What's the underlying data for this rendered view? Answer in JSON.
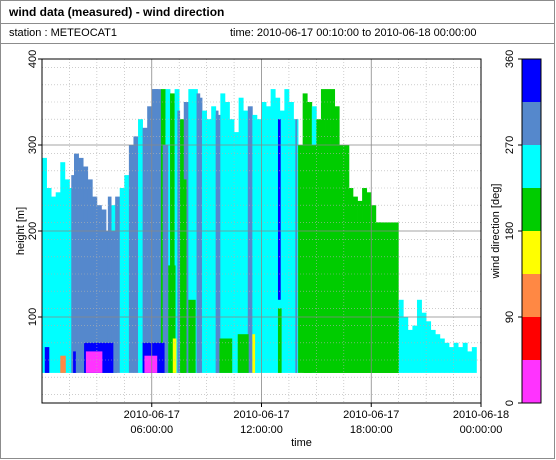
{
  "header": {
    "title": "wind data (measured) - wind direction",
    "station": "station : METEOCAT1",
    "time_range": "time: 2010-06-17 00:10:00 to 2010-06-18 00:00:00"
  },
  "chart_data": {
    "type": "heatmap",
    "xlabel": "time",
    "ylabel": "height [m]",
    "x_ticks": [
      {
        "hour": 6,
        "line1": "2010-06-17",
        "line2": "06:00:00"
      },
      {
        "hour": 12,
        "line1": "2010-06-17",
        "line2": "12:00:00"
      },
      {
        "hour": 18,
        "line1": "2010-06-17",
        "line2": "18:00:00"
      },
      {
        "hour": 24,
        "line1": "2010-06-18",
        "line2": "00:00:00"
      }
    ],
    "xlim_hours": [
      0,
      24
    ],
    "ylim": [
      0,
      400
    ],
    "y_ticks": [
      100,
      200,
      300,
      400
    ],
    "grid": true,
    "colorbar": {
      "label": "wind direction [deg]",
      "range": [
        0,
        360
      ],
      "ticks": [
        0,
        90,
        180,
        270,
        360
      ],
      "colors": [
        "#ff33ff",
        "#ff0000",
        "#ff8844",
        "#ffff00",
        "#00cc00",
        "#00ffff",
        "#5588cc",
        "#0000ff"
      ]
    },
    "column_width_hours": 0.1667,
    "height_bin_m": 10,
    "bottom_height_m": 35,
    "columns": [
      {
        "h": 0.25,
        "top": 285,
        "c": "#00ffff"
      },
      {
        "h": 0.5,
        "top": 250,
        "c": "#00ffff"
      },
      {
        "h": 0.75,
        "top": 240,
        "c": "#00ffff"
      },
      {
        "h": 1.0,
        "top": 245,
        "c": "#00ffff"
      },
      {
        "h": 1.25,
        "top": 280,
        "c": "#00ffff"
      },
      {
        "h": 1.5,
        "top": 260,
        "c": "#00ffff"
      },
      {
        "h": 1.75,
        "top": 250,
        "c": "#00ffff"
      },
      {
        "h": 2.0,
        "top": 290,
        "c": "#5588cc"
      },
      {
        "h": 2.25,
        "top": 285,
        "c": "#5588cc"
      },
      {
        "h": 2.5,
        "top": 275,
        "c": "#5588cc"
      },
      {
        "h": 2.75,
        "top": 260,
        "c": "#5588cc"
      },
      {
        "h": 3.0,
        "top": 240,
        "c": "#5588cc"
      },
      {
        "h": 3.25,
        "top": 230,
        "c": "#5588cc"
      },
      {
        "h": 3.5,
        "top": 225,
        "c": "#5588cc"
      },
      {
        "h": 3.75,
        "top": 200,
        "c": "#5588cc"
      },
      {
        "h": 4.0,
        "top": 230,
        "c": "#00ffff"
      },
      {
        "h": 4.25,
        "top": 240,
        "c": "#5588cc"
      },
      {
        "h": 4.5,
        "top": 250,
        "c": "#00ffff"
      },
      {
        "h": 4.75,
        "top": 265,
        "c": "#00ffff"
      },
      {
        "h": 5.0,
        "top": 300,
        "c": "#5588cc"
      },
      {
        "h": 5.25,
        "top": 310,
        "c": "#5588cc"
      },
      {
        "h": 5.5,
        "top": 330,
        "c": "#00ffff"
      },
      {
        "h": 5.75,
        "top": 320,
        "c": "#5588cc"
      },
      {
        "h": 6.0,
        "top": 345,
        "c": "#5588cc"
      },
      {
        "h": 6.25,
        "top": 365,
        "c": "#5588cc"
      },
      {
        "h": 6.5,
        "top": 365,
        "c": "#5588cc"
      },
      {
        "h": 6.75,
        "top": 365,
        "c": "#00cc00"
      },
      {
        "h": 7.0,
        "top": 365,
        "c": "#00ffff"
      },
      {
        "h": 7.25,
        "top": 360,
        "c": "#00cc00"
      },
      {
        "h": 7.5,
        "top": 365,
        "c": "#00ffff"
      },
      {
        "h": 7.75,
        "top": 330,
        "c": "#00cc00"
      },
      {
        "h": 8.0,
        "top": 350,
        "c": "#5588cc"
      },
      {
        "h": 8.25,
        "top": 365,
        "c": "#00ffff"
      },
      {
        "h": 8.5,
        "top": 365,
        "c": "#00ffff"
      },
      {
        "h": 8.75,
        "top": 355,
        "c": "#5588cc"
      },
      {
        "h": 9.0,
        "top": 340,
        "c": "#00ffff"
      },
      {
        "h": 9.25,
        "top": 330,
        "c": "#00ffff"
      },
      {
        "h": 9.5,
        "top": 345,
        "c": "#00ffff"
      },
      {
        "h": 9.75,
        "top": 335,
        "c": "#5588cc"
      },
      {
        "h": 10.0,
        "top": 360,
        "c": "#00ffff"
      },
      {
        "h": 10.25,
        "top": 350,
        "c": "#00ffff"
      },
      {
        "h": 10.5,
        "top": 330,
        "c": "#00ffff"
      },
      {
        "h": 10.75,
        "top": 315,
        "c": "#00ffff"
      },
      {
        "h": 11.0,
        "top": 355,
        "c": "#00ffff"
      },
      {
        "h": 11.25,
        "top": 340,
        "c": "#00ffff"
      },
      {
        "h": 11.5,
        "top": 345,
        "c": "#5588cc"
      },
      {
        "h": 11.75,
        "top": 335,
        "c": "#00ffff"
      },
      {
        "h": 12.0,
        "top": 330,
        "c": "#00ffff"
      },
      {
        "h": 12.25,
        "top": 350,
        "c": "#00ffff"
      },
      {
        "h": 12.5,
        "top": 345,
        "c": "#00ffff"
      },
      {
        "h": 12.75,
        "top": 365,
        "c": "#00ffff"
      },
      {
        "h": 13.0,
        "top": 355,
        "c": "#00ffff"
      },
      {
        "h": 13.25,
        "top": 340,
        "c": "#00ffff"
      },
      {
        "h": 13.5,
        "top": 365,
        "c": "#00ffff"
      },
      {
        "h": 13.75,
        "top": 350,
        "c": "#00ffff"
      },
      {
        "h": 14.0,
        "top": 330,
        "c": "#00ffff"
      },
      {
        "h": 14.25,
        "top": 300,
        "c": "#00cc00"
      },
      {
        "h": 14.5,
        "top": 360,
        "c": "#00cc00"
      },
      {
        "h": 14.75,
        "top": 350,
        "c": "#00cc00"
      },
      {
        "h": 15.0,
        "top": 345,
        "c": "#00ffff"
      },
      {
        "h": 15.25,
        "top": 330,
        "c": "#00cc00"
      },
      {
        "h": 15.5,
        "top": 365,
        "c": "#00cc00"
      },
      {
        "h": 15.75,
        "top": 365,
        "c": "#00cc00"
      },
      {
        "h": 16.0,
        "top": 365,
        "c": "#00cc00"
      },
      {
        "h": 16.25,
        "top": 345,
        "c": "#00cc00"
      },
      {
        "h": 16.5,
        "top": 300,
        "c": "#00cc00"
      },
      {
        "h": 16.75,
        "top": 275,
        "c": "#00cc00"
      },
      {
        "h": 17.0,
        "top": 250,
        "c": "#00cc00"
      },
      {
        "h": 17.25,
        "top": 240,
        "c": "#00cc00"
      },
      {
        "h": 17.5,
        "top": 235,
        "c": "#00cc00"
      },
      {
        "h": 17.75,
        "top": 250,
        "c": "#00cc00"
      },
      {
        "h": 18.0,
        "top": 245,
        "c": "#00cc00"
      },
      {
        "h": 18.25,
        "top": 230,
        "c": "#00cc00"
      },
      {
        "h": 18.5,
        "top": 210,
        "c": "#00cc00"
      },
      {
        "h": 18.75,
        "top": 190,
        "c": "#00cc00"
      },
      {
        "h": 19.0,
        "top": 170,
        "c": "#00cc00"
      },
      {
        "h": 19.25,
        "top": 140,
        "c": "#00cc00"
      },
      {
        "h": 19.5,
        "top": 110,
        "c": "#00cc00"
      },
      {
        "h": 19.75,
        "top": 120,
        "c": "#00ffff"
      },
      {
        "h": 20.0,
        "top": 100,
        "c": "#00ffff"
      },
      {
        "h": 20.25,
        "top": 85,
        "c": "#00ffff"
      },
      {
        "h": 20.5,
        "top": 90,
        "c": "#00ffff"
      },
      {
        "h": 20.75,
        "top": 120,
        "c": "#00ffff"
      },
      {
        "h": 21.0,
        "top": 105,
        "c": "#00ffff"
      },
      {
        "h": 21.25,
        "top": 95,
        "c": "#00ffff"
      },
      {
        "h": 21.5,
        "top": 85,
        "c": "#00ffff"
      },
      {
        "h": 21.75,
        "top": 80,
        "c": "#00ffff"
      },
      {
        "h": 22.0,
        "top": 75,
        "c": "#00ffff"
      },
      {
        "h": 22.25,
        "top": 70,
        "c": "#00ffff"
      },
      {
        "h": 22.5,
        "top": 65,
        "c": "#00ffff"
      },
      {
        "h": 22.75,
        "top": 70,
        "c": "#00ffff"
      },
      {
        "h": 23.0,
        "top": 65,
        "c": "#00ffff"
      },
      {
        "h": 23.25,
        "top": 70,
        "c": "#00ffff"
      },
      {
        "h": 23.5,
        "top": 60,
        "c": "#00ffff"
      },
      {
        "h": 23.75,
        "top": 65,
        "c": "#00ffff"
      }
    ],
    "patches": [
      {
        "h0": 1.6,
        "h1": 1.9,
        "y0": 35,
        "y1": 265,
        "c": "#5588cc"
      },
      {
        "h0": 2.2,
        "h1": 4.1,
        "y0": 35,
        "y1": 200,
        "c": "#5588cc"
      },
      {
        "h0": 3.6,
        "h1": 3.8,
        "y0": 35,
        "y1": 240,
        "c": "#5588cc"
      },
      {
        "h0": 6.1,
        "h1": 6.35,
        "y0": 35,
        "y1": 365,
        "c": "#5588cc"
      },
      {
        "h0": 6.6,
        "h1": 6.9,
        "y0": 35,
        "y1": 300,
        "c": "#5588cc"
      },
      {
        "h0": 7.4,
        "h1": 7.55,
        "y0": 35,
        "y1": 340,
        "c": "#5588cc"
      },
      {
        "h0": 8.45,
        "h1": 8.65,
        "y0": 35,
        "y1": 360,
        "c": "#5588cc"
      },
      {
        "h0": 9.5,
        "h1": 9.65,
        "y0": 35,
        "y1": 340,
        "c": "#5588cc"
      },
      {
        "h0": 13.85,
        "h1": 13.95,
        "y0": 35,
        "y1": 330,
        "c": "#5588cc"
      },
      {
        "h0": 6.9,
        "h1": 7.3,
        "y0": 35,
        "y1": 160,
        "c": "#00cc00"
      },
      {
        "h0": 7.6,
        "h1": 7.9,
        "y0": 35,
        "y1": 260,
        "c": "#00cc00"
      },
      {
        "h0": 8.0,
        "h1": 8.4,
        "y0": 35,
        "y1": 120,
        "c": "#00cc00"
      },
      {
        "h0": 9.7,
        "h1": 10.4,
        "y0": 35,
        "y1": 75,
        "c": "#00cc00"
      },
      {
        "h0": 10.7,
        "h1": 11.3,
        "y0": 35,
        "y1": 80,
        "c": "#00cc00"
      },
      {
        "h0": 12.9,
        "h1": 13.1,
        "y0": 35,
        "y1": 110,
        "c": "#00cc00"
      },
      {
        "h0": 14.3,
        "h1": 16.8,
        "y0": 35,
        "y1": 300,
        "c": "#00cc00"
      },
      {
        "h0": 16.8,
        "h1": 19.5,
        "y0": 35,
        "y1": 210,
        "c": "#00cc00"
      },
      {
        "h0": 0.15,
        "h1": 0.4,
        "y0": 35,
        "y1": 65,
        "c": "#0000ff"
      },
      {
        "h0": 1.7,
        "h1": 1.85,
        "y0": 35,
        "y1": 60,
        "c": "#0000ff"
      },
      {
        "h0": 2.3,
        "h1": 3.9,
        "y0": 35,
        "y1": 70,
        "c": "#0000ff"
      },
      {
        "h0": 5.5,
        "h1": 6.7,
        "y0": 35,
        "y1": 70,
        "c": "#0000ff"
      },
      {
        "h0": 12.9,
        "h1": 13.05,
        "y0": 120,
        "y1": 330,
        "c": "#0000ff"
      },
      {
        "h0": 2.4,
        "h1": 3.3,
        "y0": 35,
        "y1": 60,
        "c": "#ff33ff"
      },
      {
        "h0": 5.6,
        "h1": 6.3,
        "y0": 35,
        "y1": 55,
        "c": "#ff33ff"
      },
      {
        "h0": 7.15,
        "h1": 7.35,
        "y0": 35,
        "y1": 75,
        "c": "#ffff00"
      },
      {
        "h0": 11.5,
        "h1": 11.65,
        "y0": 35,
        "y1": 80,
        "c": "#ffff00"
      },
      {
        "h0": 1.0,
        "h1": 1.3,
        "y0": 35,
        "y1": 55,
        "c": "#ff8844"
      }
    ]
  }
}
